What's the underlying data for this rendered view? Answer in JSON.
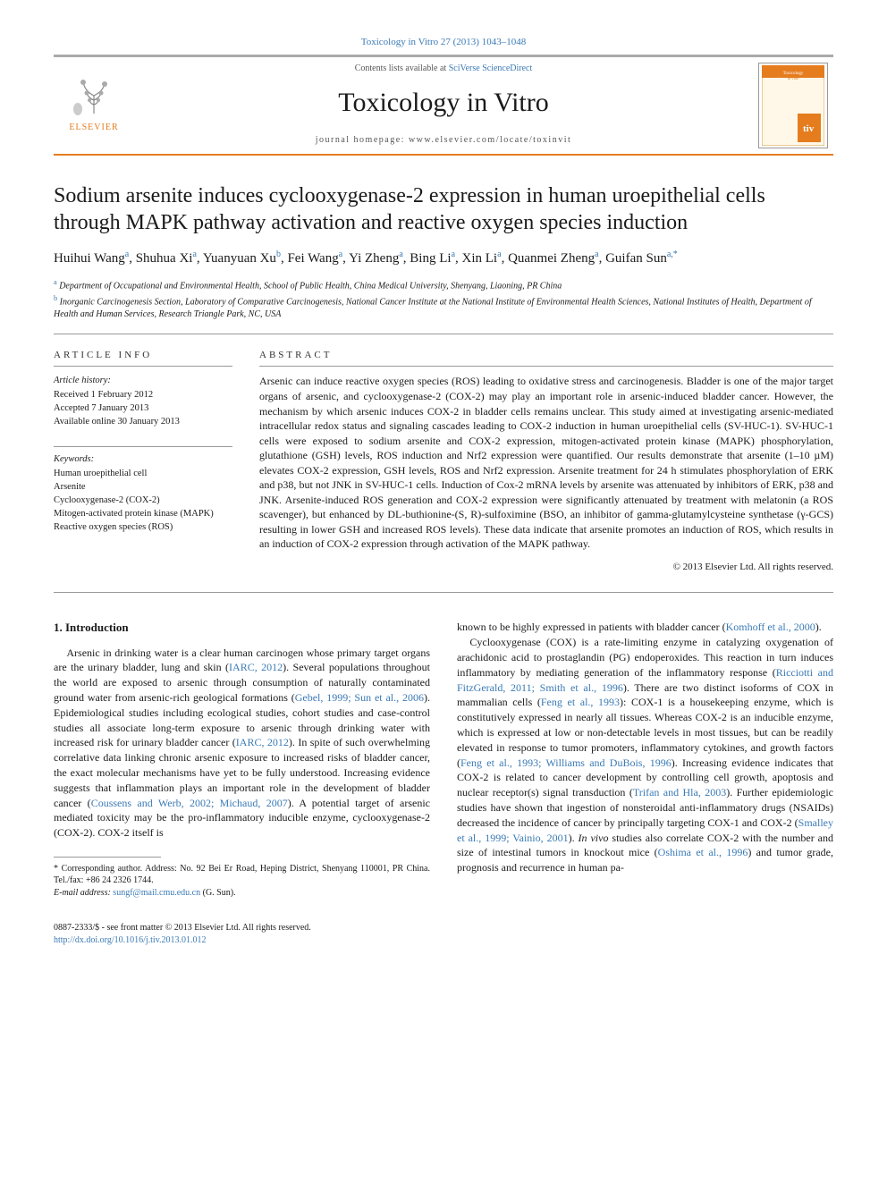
{
  "citation": "Toxicology in Vitro 27 (2013) 1043–1048",
  "header": {
    "publisher": "ELSEVIER",
    "contents_prefix": "Contents lists available at ",
    "contents_link": "SciVerse ScienceDirect",
    "journal": "Toxicology in Vitro",
    "homepage_prefix": "journal homepage: ",
    "homepage": "www.elsevier.com/locate/toxinvit",
    "cover_label": "Toxicology in Vitro"
  },
  "title": "Sodium arsenite induces cyclooxygenase-2 expression in human uroepithelial cells through MAPK pathway activation and reactive oxygen species induction",
  "authors_html": "Huihui Wang<sup>a</sup>, Shuhua Xi<sup>a</sup>, Yuanyuan Xu<sup>b</sup>, Fei Wang<sup>a</sup>, Yi Zheng<sup>a</sup>, Bing Li<sup>a</sup>, Xin Li<sup>a</sup>, Quanmei Zheng<sup>a</sup>, Guifan Sun<sup>a,*</sup>",
  "affiliations": [
    {
      "sup": "a",
      "text": "Department of Occupational and Environmental Health, School of Public Health, China Medical University, Shenyang, Liaoning, PR China"
    },
    {
      "sup": "b",
      "text": "Inorganic Carcinogenesis Section, Laboratory of Comparative Carcinogenesis, National Cancer Institute at the National Institute of Environmental Health Sciences, National Institutes of Health, Department of Health and Human Services, Research Triangle Park, NC, USA"
    }
  ],
  "info_head": "ARTICLE INFO",
  "abstract_head": "ABSTRACT",
  "history": {
    "label": "Article history:",
    "received": "Received 1 February 2012",
    "accepted": "Accepted 7 January 2013",
    "online": "Available online 30 January 2013"
  },
  "keywords": {
    "label": "Keywords:",
    "items": [
      "Human uroepithelial cell",
      "Arsenite",
      "Cyclooxygenase-2 (COX-2)",
      "Mitogen-activated protein kinase (MAPK)",
      "Reactive oxygen species (ROS)"
    ]
  },
  "abstract": "Arsenic can induce reactive oxygen species (ROS) leading to oxidative stress and carcinogenesis. Bladder is one of the major target organs of arsenic, and cyclooxygenase-2 (COX-2) may play an important role in arsenic-induced bladder cancer. However, the mechanism by which arsenic induces COX-2 in bladder cells remains unclear. This study aimed at investigating arsenic-mediated intracellular redox status and signaling cascades leading to COX-2 induction in human uroepithelial cells (SV-HUC-1). SV-HUC-1 cells were exposed to sodium arsenite and COX-2 expression, mitogen-activated protein kinase (MAPK) phosphorylation, glutathione (GSH) levels, ROS induction and Nrf2 expression were quantified. Our results demonstrate that arsenite (1–10 µM) elevates COX-2 expression, GSH levels, ROS and Nrf2 expression. Arsenite treatment for 24 h stimulates phosphorylation of ERK and p38, but not JNK in SV-HUC-1 cells. Induction of Cox-2 mRNA levels by arsenite was attenuated by inhibitors of ERK, p38 and JNK. Arsenite-induced ROS generation and COX-2 expression were significantly attenuated by treatment with melatonin (a ROS scavenger), but enhanced by DL-buthionine-(S, R)-sulfoximine (BSO, an inhibitor of gamma-glutamylcysteine synthetase (γ-GCS) resulting in lower GSH and increased ROS levels). These data indicate that arsenite promotes an induction of ROS, which results in an induction of COX-2 expression through activation of the MAPK pathway.",
  "copyright": "© 2013 Elsevier Ltd. All rights reserved.",
  "intro": {
    "heading": "1. Introduction",
    "col1_p1": "Arsenic in drinking water is a clear human carcinogen whose primary target organs are the urinary bladder, lung and skin (<span class='cite'>IARC, 2012</span>). Several populations throughout the world are exposed to arsenic through consumption of naturally contaminated ground water from arsenic-rich geological formations (<span class='cite'>Gebel, 1999; Sun et al., 2006</span>). Epidemiological studies including ecological studies, cohort studies and case-control studies all associate long-term exposure to arsenic through drinking water with increased risk for urinary bladder cancer (<span class='cite'>IARC, 2012</span>). In spite of such overwhelming correlative data linking chronic arsenic exposure to increased risks of bladder cancer, the exact molecular mechanisms have yet to be fully understood. Increasing evidence suggests that inflammation plays an important role in the development of bladder cancer (<span class='cite'>Coussens and Werb, 2002; Michaud, 2007</span>). A potential target of arsenic mediated toxicity may be the pro-inflammatory inducible enzyme, cyclooxygenase-2 (COX-2). COX-2 itself is",
    "col2_p1": "known to be highly expressed in patients with bladder cancer (<span class='cite'>Komhoff et al., 2000</span>).",
    "col2_p2": "Cyclooxygenase (COX) is a rate-limiting enzyme in catalyzing oxygenation of arachidonic acid to prostaglandin (PG) endoperoxides. This reaction in turn induces inflammatory by mediating generation of the inflammatory response (<span class='cite'>Ricciotti and FitzGerald, 2011; Smith et al., 1996</span>). There are two distinct isoforms of COX in mammalian cells (<span class='cite'>Feng et al., 1993</span>): COX-1 is a housekeeping enzyme, which is constitutively expressed in nearly all tissues. Whereas COX-2 is an inducible enzyme, which is expressed at low or non-detectable levels in most tissues, but can be readily elevated in response to tumor promoters, inflammatory cytokines, and growth factors (<span class='cite'>Feng et al., 1993; Williams and DuBois, 1996</span>). Increasing evidence indicates that COX-2 is related to cancer development by controlling cell growth, apoptosis and nuclear receptor(s) signal transduction (<span class='cite'>Trifan and Hla, 2003</span>). Further epidemiologic studies have shown that ingestion of nonsteroidal anti-inflammatory drugs (NSAIDs) decreased the incidence of cancer by principally targeting COX-1 and COX-2 (<span class='cite'>Smalley et al., 1999; Vainio, 2001</span>). <i>In vivo</i> studies also correlate COX-2 with the number and size of intestinal tumors in knockout mice (<span class='cite'>Oshima et al., 1996</span>) and tumor grade, prognosis and recurrence in human pa-"
  },
  "footnotes": {
    "corresponding": "* Corresponding author. Address: No. 92 Bei Er Road, Heping District, Shenyang 110001, PR China. Tel./fax: +86 24 2326 1744.",
    "email_label": "E-mail address: ",
    "email": "sungf@mail.cmu.edu.cn",
    "email_suffix": " (G. Sun)."
  },
  "bottom": {
    "left1": "0887-2333/$ - see front matter © 2013 Elsevier Ltd. All rights reserved.",
    "left2": "http://dx.doi.org/10.1016/j.tiv.2013.01.012"
  },
  "colors": {
    "orange": "#e57c1e",
    "link": "#3a7ab5",
    "rule": "#999999"
  }
}
